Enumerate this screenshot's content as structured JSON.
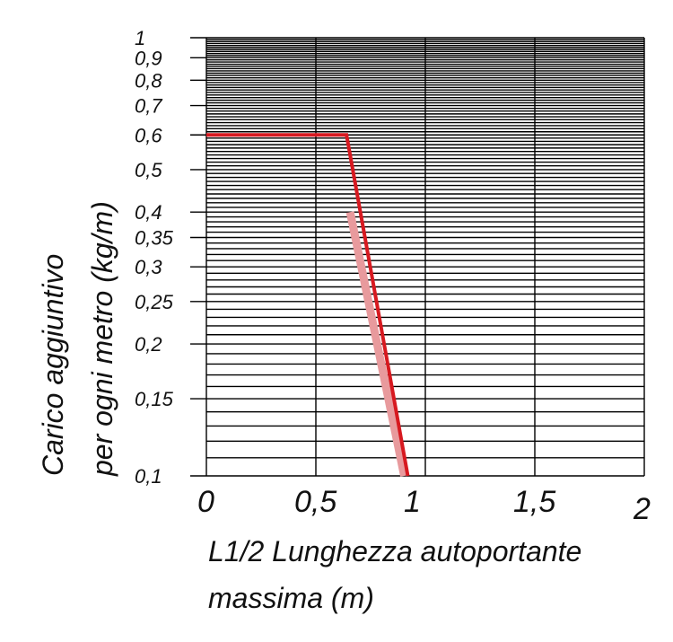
{
  "chart_data": {
    "type": "line",
    "y_scale": "log",
    "xlim": [
      0,
      2
    ],
    "ylim": [
      0.1,
      1
    ],
    "grid": true,
    "x_ticks": [
      {
        "value": 0,
        "label": "0"
      },
      {
        "value": 0.5,
        "label": "0,5"
      },
      {
        "value": 1,
        "label": "1"
      },
      {
        "value": 1.5,
        "label": "1,5"
      },
      {
        "value": 2,
        "label": "2"
      }
    ],
    "y_ticks": [
      {
        "value": 1,
        "label": "1"
      },
      {
        "value": 0.9,
        "label": "0,9"
      },
      {
        "value": 0.8,
        "label": "0,8"
      },
      {
        "value": 0.7,
        "label": "0,7"
      },
      {
        "value": 0.6,
        "label": "0,6"
      },
      {
        "value": 0.5,
        "label": "0,5"
      },
      {
        "value": 0.4,
        "label": "0,4"
      },
      {
        "value": 0.35,
        "label": "0,35"
      },
      {
        "value": 0.3,
        "label": "0,3"
      },
      {
        "value": 0.25,
        "label": "0,25"
      },
      {
        "value": 0.2,
        "label": "0,2"
      },
      {
        "value": 0.15,
        "label": "0,15"
      },
      {
        "value": 0.1,
        "label": "0,1"
      }
    ],
    "xlabel": [
      "L1/2 Lunghezza autoportante",
      "massima (m)"
    ],
    "ylabel": [
      "Carico aggiuntivo",
      "per ogni metro (kg/m)"
    ],
    "series": [
      {
        "color": "#d71920",
        "points": [
          {
            "x": 0,
            "y": 0.6
          },
          {
            "x": 0.64,
            "y": 0.6
          },
          {
            "x": 0.92,
            "y": 0.1
          }
        ]
      }
    ],
    "shadow_color": "#e89a9d"
  }
}
